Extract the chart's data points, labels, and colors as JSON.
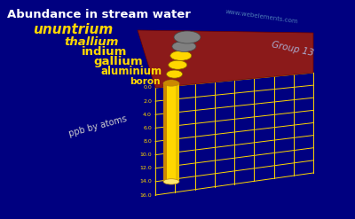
{
  "title": "Abundance in stream water",
  "ylabel": "ppb by atoms",
  "group_label": "Group 13",
  "watermark": "www.webelements.com",
  "elements": [
    "boron",
    "aluminium",
    "gallium",
    "indium",
    "thallium",
    "ununtrium"
  ],
  "values": [
    14.0,
    0.3,
    0.3,
    0.1,
    0.06,
    0.0
  ],
  "ylim": [
    0,
    16.0
  ],
  "yticks": [
    0.0,
    2.0,
    4.0,
    6.0,
    8.0,
    10.0,
    12.0,
    14.0,
    16.0
  ],
  "background_color": "#000080",
  "bar_color": "#FFD700",
  "base_color": "#8B1A1A",
  "dot_colors": [
    "#FF8C00",
    "#FFD700",
    "#FFD700",
    "#FFD700",
    "#808080",
    "#808080"
  ],
  "grid_color": "#FFD700",
  "title_color": "#FFFFFF",
  "label_color": "#FFD700",
  "tick_color": "#FFD700",
  "ppb_label_color": "#CCCCCC",
  "group_color": "#AAAACC",
  "watermark_color": "#5588BB"
}
